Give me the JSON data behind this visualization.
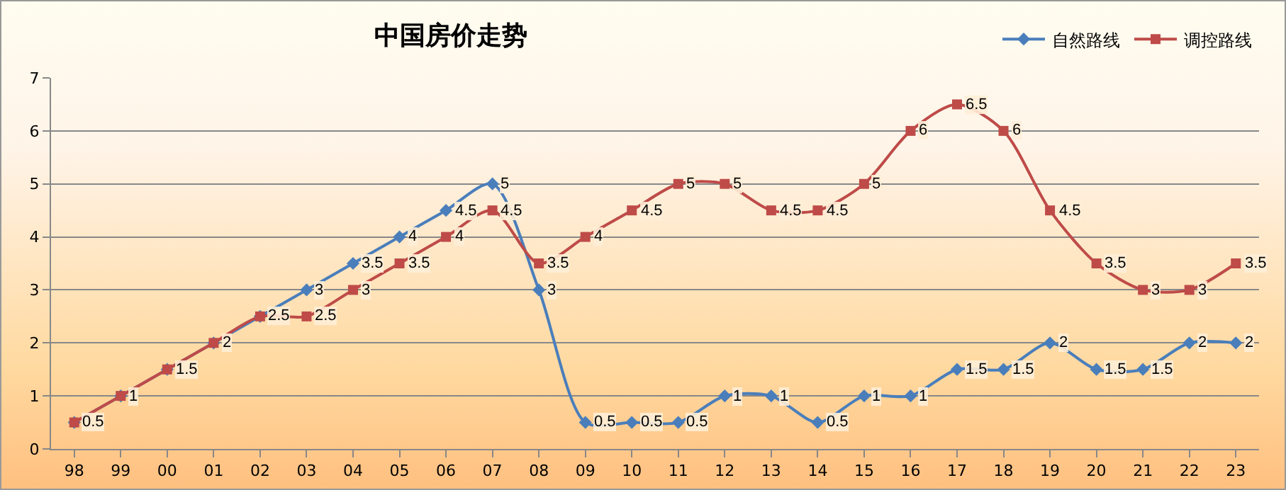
{
  "chart_data": {
    "type": "line",
    "title": "中国房价走势",
    "categories": [
      "98",
      "99",
      "00",
      "01",
      "02",
      "03",
      "04",
      "05",
      "06",
      "07",
      "08",
      "09",
      "10",
      "11",
      "12",
      "13",
      "14",
      "15",
      "16",
      "17",
      "18",
      "19",
      "20",
      "21",
      "22",
      "23"
    ],
    "series": [
      {
        "name": "自然路线",
        "color": "#4a7ebb",
        "marker": "diamond",
        "values": [
          0.5,
          1,
          1.5,
          2,
          2.5,
          3,
          3.5,
          4,
          4.5,
          5,
          3,
          0.5,
          0.5,
          0.5,
          1,
          1,
          0.5,
          1,
          1,
          1.5,
          1.5,
          2,
          1.5,
          1.5,
          2,
          2
        ]
      },
      {
        "name": "调控路线",
        "color": "#be4b48",
        "marker": "square",
        "value_labels": [
          null,
          null,
          null,
          null,
          null,
          "2.5",
          "3",
          "3.5",
          "4",
          "4.5",
          "3.5",
          "4",
          "4.5",
          "5",
          "5",
          "4.5",
          "4.5",
          "5",
          "6",
          "6.5",
          "6",
          "4.5",
          "3.5",
          "3",
          "3",
          "3.5"
        ],
        "values": [
          0.5,
          1,
          1.5,
          2,
          2.5,
          2.5,
          3,
          3.5,
          4,
          4.5,
          3.5,
          4,
          4.5,
          5,
          5,
          4.5,
          4.5,
          5,
          6,
          6.5,
          6,
          4.5,
          3.5,
          3,
          3,
          3.5
        ]
      }
    ],
    "ylim": [
      0,
      7
    ],
    "yticks": [
      0,
      1,
      2,
      3,
      4,
      5,
      6,
      7
    ],
    "grid": "y",
    "legend": "top right",
    "data_labels": true,
    "line_style": "solid"
  }
}
